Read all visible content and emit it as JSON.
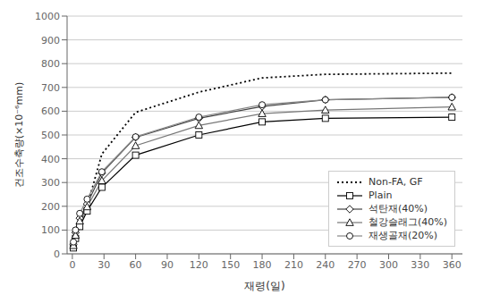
{
  "chart_data": {
    "type": "line",
    "xlabel": "재령(일)",
    "ylabel": "건조수축량(×10⁻⁶mm)",
    "xlim": [
      -5,
      370
    ],
    "xticks": [
      0,
      30,
      60,
      90,
      120,
      150,
      180,
      210,
      240,
      270,
      300,
      330,
      360
    ],
    "ylim": [
      0,
      1000
    ],
    "yticks": [
      0,
      100,
      200,
      300,
      400,
      500,
      600,
      700,
      800,
      900,
      1000
    ],
    "grid": "y",
    "legend": "lower right",
    "x": [
      1,
      3,
      7,
      14,
      28,
      60,
      120,
      180,
      240,
      360
    ],
    "series": [
      {
        "name": "Non-FA, GF",
        "color": "#000000",
        "line_style": "dotted",
        "marker": "none",
        "values": [
          30,
          80,
          130,
          200,
          420,
          595,
          680,
          740,
          755,
          760
        ]
      },
      {
        "name": "Plain",
        "color": "#000000",
        "line_style": "solid",
        "marker": "square",
        "values": [
          25,
          65,
          115,
          180,
          280,
          415,
          500,
          555,
          570,
          575
        ]
      },
      {
        "name": "석탄재(40%)",
        "color": "#444444",
        "line_style": "solid",
        "marker": "diamond",
        "values": [
          40,
          90,
          150,
          210,
          340,
          490,
          570,
          620,
          648,
          658
        ]
      },
      {
        "name": "철강슬래그(40%)",
        "color": "#777777",
        "line_style": "solid",
        "marker": "triangle",
        "values": [
          35,
          78,
          138,
          198,
          308,
          455,
          540,
          590,
          605,
          618
        ]
      },
      {
        "name": "재생골재(20%)",
        "color": "#888888",
        "line_style": "solid",
        "marker": "circle",
        "values": [
          50,
          100,
          170,
          230,
          345,
          492,
          575,
          627,
          648,
          658
        ]
      }
    ]
  }
}
